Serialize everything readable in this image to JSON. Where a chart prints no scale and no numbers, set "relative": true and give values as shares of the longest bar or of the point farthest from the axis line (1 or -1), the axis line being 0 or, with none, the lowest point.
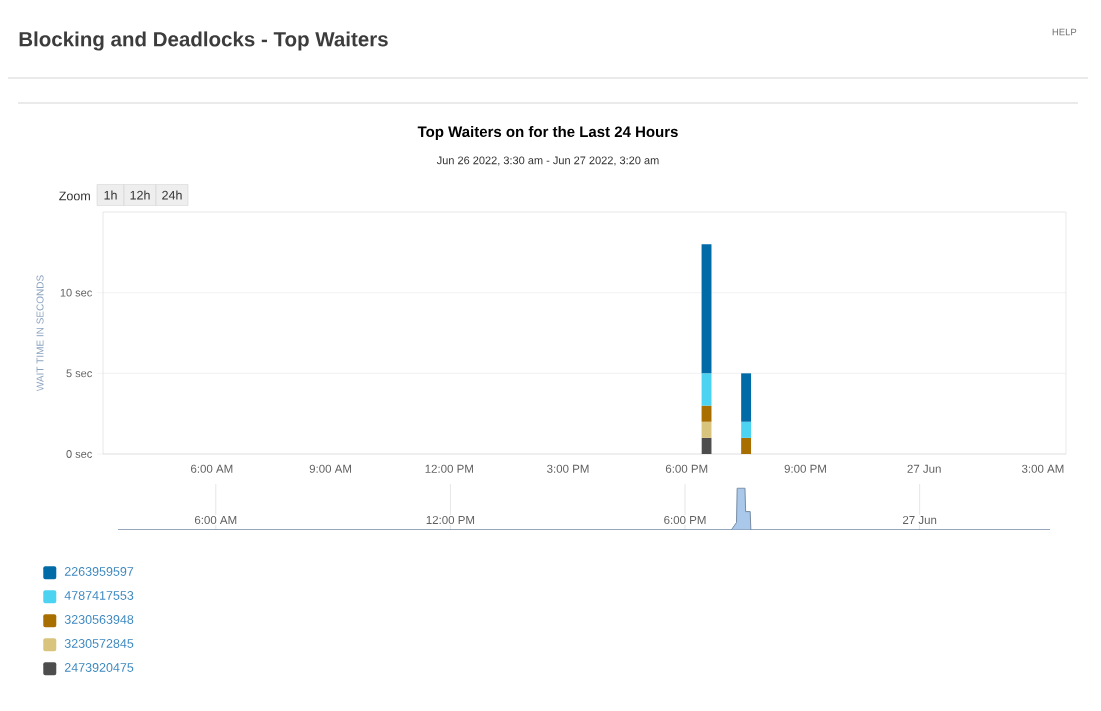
{
  "chart_data": [
    {
      "type": "bar",
      "title": "Top Waiters on for the Last 24 Hours",
      "subtitle": "Jun 26 2022, 3:30 am - Jun 27 2022, 3:20 am",
      "ylabel": "WAIT TIME IN SECONDS",
      "stacked": true,
      "x": [
        "2022-06-26T18:30",
        "2022-06-26T19:30"
      ],
      "series": [
        {
          "name": "2473920475",
          "color": "#4d4d4d",
          "values": [
            1,
            null
          ]
        },
        {
          "name": "3230572845",
          "color": "#d9c47e",
          "values": [
            1,
            null
          ]
        },
        {
          "name": "3230563948",
          "color": "#a86f00",
          "values": [
            1,
            1
          ]
        },
        {
          "name": "4787417553",
          "color": "#4cd3f1",
          "values": [
            2,
            1
          ]
        },
        {
          "name": "2263959597",
          "color": "#006ba6",
          "values": [
            8,
            3
          ]
        }
      ],
      "xlim": [
        "2022-06-26T03:15",
        "2022-06-27T03:35"
      ],
      "xticks": [
        {
          "value": "2022-06-26T06:00",
          "label": "6:00 AM"
        },
        {
          "value": "2022-06-26T09:00",
          "label": "9:00 AM"
        },
        {
          "value": "2022-06-26T12:00",
          "label": "12:00 PM"
        },
        {
          "value": "2022-06-26T15:00",
          "label": "3:00 PM"
        },
        {
          "value": "2022-06-26T18:00",
          "label": "6:00 PM"
        },
        {
          "value": "2022-06-26T21:00",
          "label": "9:00 PM"
        },
        {
          "value": "2022-06-27T00:00",
          "label": "27 Jun"
        },
        {
          "value": "2022-06-27T03:00",
          "label": "3:00 AM"
        }
      ],
      "ylim": [
        0,
        15
      ],
      "yticks": [
        {
          "value": 0,
          "label": "0 sec"
        },
        {
          "value": 5,
          "label": "5 sec"
        },
        {
          "value": 10,
          "label": "10 sec"
        }
      ],
      "grid": "y",
      "legend": "bottom left",
      "annotations": [
        "Blocking and Deadlocks - Top Waiters",
        "HELP",
        "Zoom",
        "1h",
        "12h",
        "24h"
      ]
    },
    {
      "type": "area",
      "relative": true,
      "color": "#a9c8ea",
      "x": [
        "2022-06-26T03:30",
        "2022-06-26T19:11",
        "2022-06-26T19:19",
        "2022-06-26T19:20",
        "2022-06-26T19:32",
        "2022-06-26T19:33",
        "2022-06-26T19:40",
        "2022-06-26T19:41",
        "2022-06-27T03:20"
      ],
      "values": [
        0,
        0,
        0.18,
        1,
        1,
        0.44,
        0.44,
        0,
        0
      ],
      "xlim": [
        "2022-06-26T03:30",
        "2022-06-27T03:20"
      ],
      "xticks": [
        {
          "value": "2022-06-26T06:00",
          "label": "6:00 AM"
        },
        {
          "value": "2022-06-26T12:00",
          "label": "12:00 PM"
        },
        {
          "value": "2022-06-26T18:00",
          "label": "6:00 PM"
        },
        {
          "value": "2022-06-27T00:00",
          "label": "27 Jun"
        }
      ],
      "grid": "x",
      "tick_labels": "x"
    }
  ]
}
